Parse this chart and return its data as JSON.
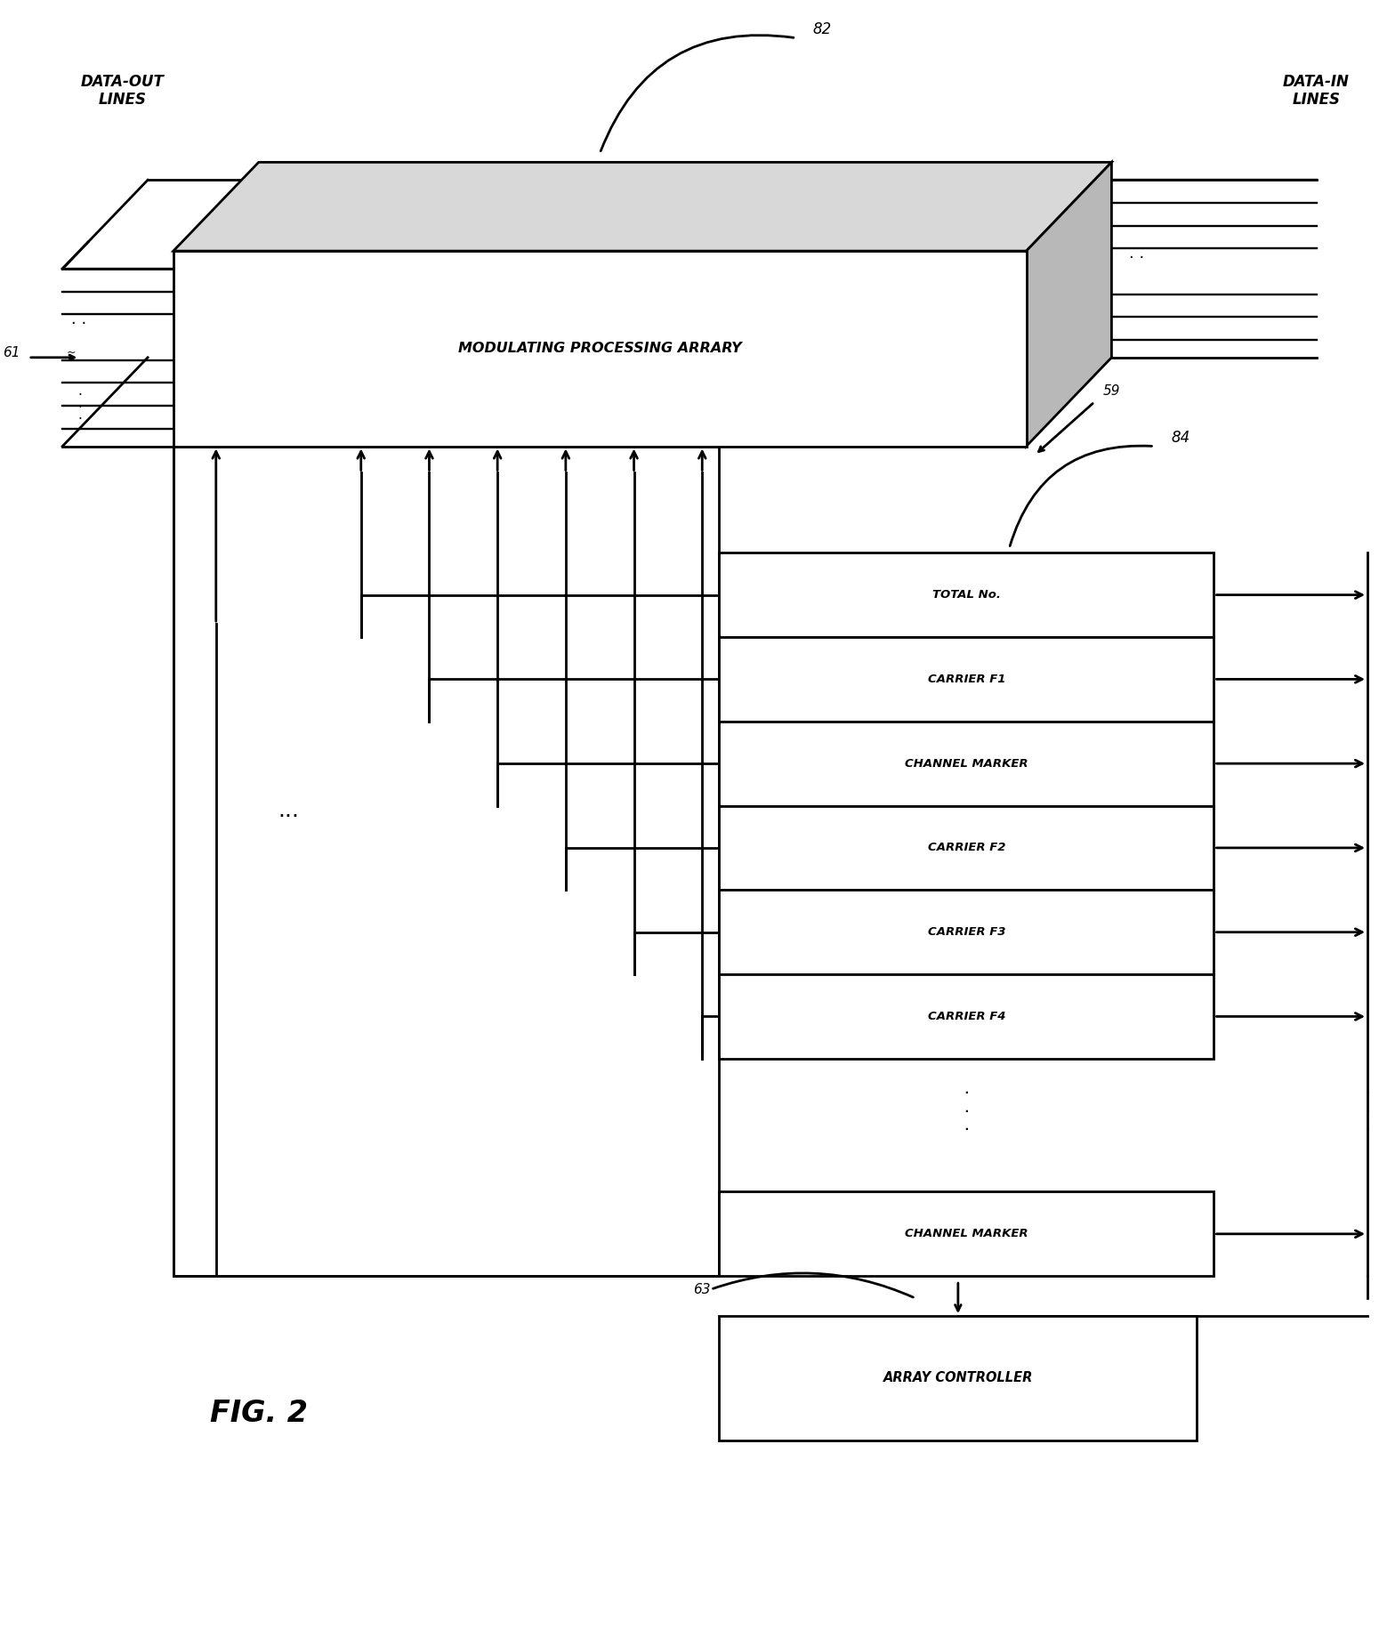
{
  "fig_width": 15.59,
  "fig_height": 18.41,
  "bg_color": "#ffffff",
  "title": "FIG. 2",
  "processing_array_label": "MODULATING PROCESSING ARRARY",
  "data_out_label": "DATA-OUT\nLINES",
  "data_in_label": "DATA-IN\nLINES",
  "label_61": "61",
  "label_59": "59",
  "label_82": "82",
  "label_84": "84",
  "label_63": "63",
  "register_rows": [
    "TOTAL No.",
    "CARRIER F1",
    "CHANNEL MARKER",
    "CARRIER F2",
    "CARRIER F3",
    "CARRIER F4"
  ],
  "last_row": "CHANNEL MARKER",
  "array_controller_label": "ARRAY CONTROLLER",
  "lw": 2.0
}
